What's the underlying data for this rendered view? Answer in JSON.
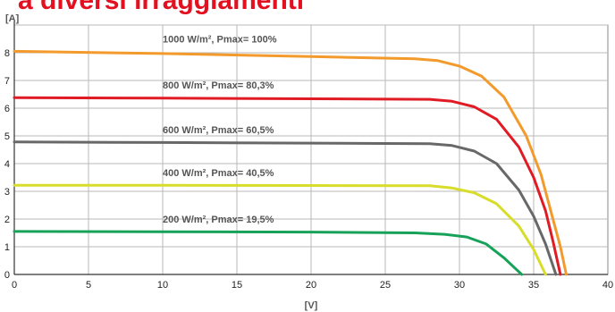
{
  "title": "a diversi irraggiamenti",
  "chart_data": {
    "type": "line",
    "xlabel": "[V]",
    "ylabel": "[A]",
    "xlim": [
      0,
      40
    ],
    "ylim": [
      0,
      9
    ],
    "xticks": [
      0,
      5,
      10,
      15,
      20,
      25,
      30,
      35,
      40
    ],
    "yticks": [
      0,
      1,
      2,
      3,
      4,
      5,
      6,
      7,
      8
    ],
    "grid": true,
    "series": [
      {
        "name": "1000 W/m², Pmax= 100%",
        "color": "#f39a2c",
        "x": [
          0,
          10,
          20,
          27,
          28.5,
          30,
          31.5,
          33,
          34.5,
          35.5,
          36.2,
          36.8,
          37.2
        ],
        "y": [
          8.05,
          7.97,
          7.86,
          7.78,
          7.72,
          7.52,
          7.15,
          6.4,
          5.0,
          3.6,
          2.2,
          1.0,
          0
        ]
      },
      {
        "name": "800 W/m², Pmax= 80,3%",
        "color": "#e01b24",
        "x": [
          0,
          10,
          20,
          28,
          29.5,
          31,
          32.5,
          34,
          35,
          35.8,
          36.3,
          36.8
        ],
        "y": [
          6.38,
          6.36,
          6.34,
          6.32,
          6.25,
          6.05,
          5.6,
          4.6,
          3.5,
          2.3,
          1.2,
          0
        ]
      },
      {
        "name": "600 W/m², Pmax= 60,5%",
        "color": "#686868",
        "x": [
          0,
          10,
          20,
          28,
          29.5,
          31,
          32.5,
          34,
          35,
          35.8,
          36.5
        ],
        "y": [
          4.78,
          4.76,
          4.74,
          4.72,
          4.65,
          4.45,
          4.0,
          3.05,
          2.1,
          1.1,
          0
        ]
      },
      {
        "name": "400 W/m², Pmax= 40,5%",
        "color": "#d8dd2c",
        "x": [
          0,
          10,
          20,
          28,
          29.5,
          31,
          32.5,
          34,
          35,
          35.8
        ],
        "y": [
          3.22,
          3.22,
          3.21,
          3.2,
          3.12,
          2.95,
          2.55,
          1.75,
          0.9,
          0
        ]
      },
      {
        "name": "200 W/m², Pmax= 19,5%",
        "color": "#17a25a",
        "x": [
          0,
          10,
          20,
          27,
          29,
          30.5,
          31.8,
          33,
          33.7,
          34.2
        ],
        "y": [
          1.55,
          1.54,
          1.53,
          1.5,
          1.45,
          1.35,
          1.1,
          0.6,
          0.25,
          0
        ]
      }
    ]
  }
}
